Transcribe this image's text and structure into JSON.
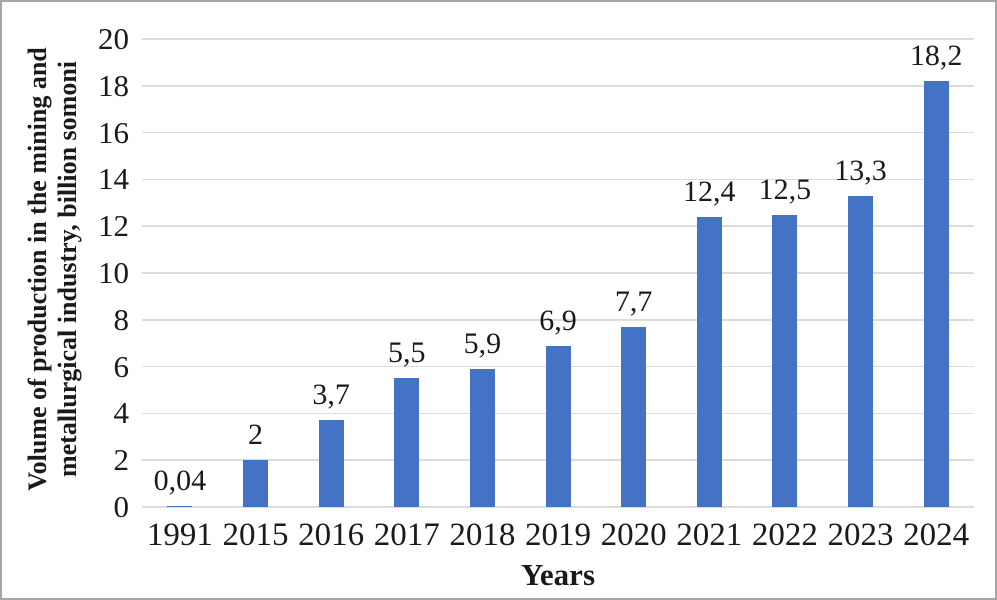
{
  "chart_data": {
    "type": "bar",
    "title": "",
    "xlabel": "Years",
    "ylabel": "Volume of production in the mining and metallurgical industry, billion somoni",
    "ylabel_lines": [
      "Volume of production in the mining and",
      "metallurgical industry, billion somoni"
    ],
    "categories": [
      "1991",
      "2015",
      "2016",
      "2017",
      "2018",
      "2019",
      "2020",
      "2021",
      "2022",
      "2023",
      "2024"
    ],
    "values": [
      0.04,
      2,
      3.7,
      5.5,
      5.9,
      6.9,
      7.7,
      12.4,
      12.5,
      13.3,
      18.2
    ],
    "value_labels": [
      "0,04",
      "2",
      "3,7",
      "5,5",
      "5,9",
      "6,9",
      "7,7",
      "12,4",
      "12,5",
      "13,3",
      "18,2"
    ],
    "yticks": [
      0,
      2,
      4,
      6,
      8,
      10,
      12,
      14,
      16,
      18,
      20
    ],
    "ylim": [
      0,
      20
    ],
    "grid": true,
    "legend_position": "none",
    "colors": {
      "bar": "#4472C4",
      "gridline": "#dcdcdc",
      "text": "#1a1a1a",
      "frame_border": "#a6a6a6",
      "background": "#ffffff"
    }
  }
}
